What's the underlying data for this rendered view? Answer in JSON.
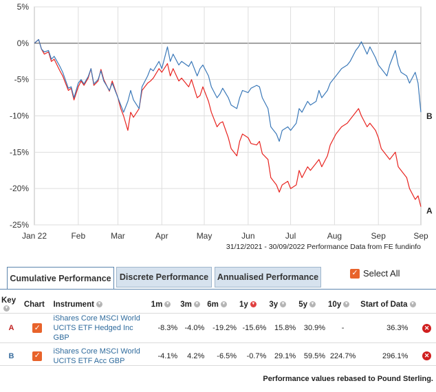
{
  "chart_data": {
    "type": "line",
    "x_ticks": [
      "Jan 22",
      "Feb",
      "Mar",
      "Apr",
      "May",
      "Jun",
      "Jul",
      "Aug",
      "Sep",
      "Sep"
    ],
    "y_ticks": [
      "5%",
      "0%",
      "-5%",
      "-10%",
      "-15%",
      "-20%",
      "-25%"
    ],
    "ylim": [
      -25,
      5
    ],
    "xlim": [
      "2021-12-31",
      "2022-09-30"
    ],
    "grid": true,
    "caption": "31/12/2021 - 30/09/2022 Performance Data from FE fundinfo",
    "series": [
      {
        "name": "A",
        "color": "#e8231f",
        "points": [
          [
            "2021-12-31",
            0
          ],
          [
            "2022-01-03",
            0.5
          ],
          [
            "2022-01-05",
            -0.8
          ],
          [
            "2022-01-07",
            -1.5
          ],
          [
            "2022-01-10",
            -1.2
          ],
          [
            "2022-01-12",
            -2.5
          ],
          [
            "2022-01-14",
            -2.2
          ],
          [
            "2022-01-18",
            -3.8
          ],
          [
            "2022-01-20",
            -4.5
          ],
          [
            "2022-01-24",
            -6.5
          ],
          [
            "2022-01-26",
            -6.2
          ],
          [
            "2022-01-28",
            -7.8
          ],
          [
            "2022-01-31",
            -6.0
          ],
          [
            "2022-02-02",
            -5.2
          ],
          [
            "2022-02-04",
            -5.8
          ],
          [
            "2022-02-07",
            -4.8
          ],
          [
            "2022-02-09",
            -3.5
          ],
          [
            "2022-02-11",
            -5.8
          ],
          [
            "2022-02-14",
            -5.2
          ],
          [
            "2022-02-16",
            -3.6
          ],
          [
            "2022-02-18",
            -5.0
          ],
          [
            "2022-02-22",
            -6.6
          ],
          [
            "2022-02-24",
            -5.2
          ],
          [
            "2022-02-28",
            -7.5
          ],
          [
            "2022-03-02",
            -9.0
          ],
          [
            "2022-03-04",
            -10.0
          ],
          [
            "2022-03-07",
            -12.0
          ],
          [
            "2022-03-09",
            -9.5
          ],
          [
            "2022-03-11",
            -10.2
          ],
          [
            "2022-03-15",
            -9.0
          ],
          [
            "2022-03-17",
            -6.5
          ],
          [
            "2022-03-21",
            -5.5
          ],
          [
            "2022-03-23",
            -5.2
          ],
          [
            "2022-03-25",
            -4.8
          ],
          [
            "2022-03-29",
            -3.5
          ],
          [
            "2022-03-31",
            -4.0
          ],
          [
            "2022-04-04",
            -2.8
          ],
          [
            "2022-04-06",
            -4.5
          ],
          [
            "2022-04-08",
            -3.5
          ],
          [
            "2022-04-12",
            -5.2
          ],
          [
            "2022-04-14",
            -4.8
          ],
          [
            "2022-04-19",
            -6.0
          ],
          [
            "2022-04-21",
            -5.0
          ],
          [
            "2022-04-25",
            -7.5
          ],
          [
            "2022-04-27",
            -7.2
          ],
          [
            "2022-04-29",
            -6.0
          ],
          [
            "2022-05-03",
            -8.0
          ],
          [
            "2022-05-05",
            -9.5
          ],
          [
            "2022-05-09",
            -11.5
          ],
          [
            "2022-05-11",
            -11.0
          ],
          [
            "2022-05-13",
            -10.8
          ],
          [
            "2022-05-17",
            -13.0
          ],
          [
            "2022-05-19",
            -14.5
          ],
          [
            "2022-05-23",
            -15.5
          ],
          [
            "2022-05-25",
            -13.5
          ],
          [
            "2022-05-27",
            -12.5
          ],
          [
            "2022-05-31",
            -13.0
          ],
          [
            "2022-06-02",
            -13.8
          ],
          [
            "2022-06-06",
            -14.0
          ],
          [
            "2022-06-08",
            -13.5
          ],
          [
            "2022-06-10",
            -15.2
          ],
          [
            "2022-06-14",
            -16.0
          ],
          [
            "2022-06-16",
            -18.5
          ],
          [
            "2022-06-20",
            -19.5
          ],
          [
            "2022-06-22",
            -20.5
          ],
          [
            "2022-06-24",
            -19.5
          ],
          [
            "2022-06-28",
            -19.0
          ],
          [
            "2022-06-30",
            -20.0
          ],
          [
            "2022-07-04",
            -19.5
          ],
          [
            "2022-07-06",
            -17.5
          ],
          [
            "2022-07-08",
            -18.5
          ],
          [
            "2022-07-12",
            -17.0
          ],
          [
            "2022-07-14",
            -17.5
          ],
          [
            "2022-07-18",
            -16.5
          ],
          [
            "2022-07-20",
            -16.0
          ],
          [
            "2022-07-22",
            -17.0
          ],
          [
            "2022-07-26",
            -15.5
          ],
          [
            "2022-07-28",
            -14.0
          ],
          [
            "2022-08-01",
            -12.5
          ],
          [
            "2022-08-03",
            -12.0
          ],
          [
            "2022-08-05",
            -11.5
          ],
          [
            "2022-08-09",
            -11.0
          ],
          [
            "2022-08-11",
            -10.5
          ],
          [
            "2022-08-15",
            -9.5
          ],
          [
            "2022-08-17",
            -9.0
          ],
          [
            "2022-08-19",
            -10.0
          ],
          [
            "2022-08-23",
            -11.5
          ],
          [
            "2022-08-25",
            -11.0
          ],
          [
            "2022-08-29",
            -12.0
          ],
          [
            "2022-08-31",
            -13.0
          ],
          [
            "2022-09-02",
            -14.5
          ],
          [
            "2022-09-06",
            -15.5
          ],
          [
            "2022-09-08",
            -16.0
          ],
          [
            "2022-09-12",
            -15.0
          ],
          [
            "2022-09-14",
            -17.0
          ],
          [
            "2022-09-16",
            -17.5
          ],
          [
            "2022-09-20",
            -18.5
          ],
          [
            "2022-09-22",
            -20.0
          ],
          [
            "2022-09-26",
            -21.5
          ],
          [
            "2022-09-28",
            -21.0
          ],
          [
            "2022-09-30",
            -22.5
          ]
        ]
      },
      {
        "name": "B",
        "color": "#3a78b8",
        "points": [
          [
            "2021-12-31",
            0
          ],
          [
            "2022-01-03",
            0.5
          ],
          [
            "2022-01-05",
            -0.8
          ],
          [
            "2022-01-07",
            -1.2
          ],
          [
            "2022-01-10",
            -1.0
          ],
          [
            "2022-01-12",
            -2.2
          ],
          [
            "2022-01-14",
            -1.8
          ],
          [
            "2022-01-18",
            -3.2
          ],
          [
            "2022-01-20",
            -4.0
          ],
          [
            "2022-01-24",
            -6.2
          ],
          [
            "2022-01-26",
            -6.0
          ],
          [
            "2022-01-28",
            -7.5
          ],
          [
            "2022-01-31",
            -5.5
          ],
          [
            "2022-02-02",
            -5.0
          ],
          [
            "2022-02-04",
            -5.6
          ],
          [
            "2022-02-07",
            -4.6
          ],
          [
            "2022-02-09",
            -3.5
          ],
          [
            "2022-02-11",
            -5.6
          ],
          [
            "2022-02-14",
            -5.0
          ],
          [
            "2022-02-16",
            -3.8
          ],
          [
            "2022-02-18",
            -5.2
          ],
          [
            "2022-02-22",
            -6.5
          ],
          [
            "2022-02-24",
            -5.5
          ],
          [
            "2022-02-28",
            -7.5
          ],
          [
            "2022-03-02",
            -8.5
          ],
          [
            "2022-03-04",
            -9.5
          ],
          [
            "2022-03-07",
            -8.0
          ],
          [
            "2022-03-09",
            -6.5
          ],
          [
            "2022-03-11",
            -7.8
          ],
          [
            "2022-03-15",
            -9.0
          ],
          [
            "2022-03-17",
            -6.0
          ],
          [
            "2022-03-21",
            -4.5
          ],
          [
            "2022-03-23",
            -3.5
          ],
          [
            "2022-03-25",
            -3.8
          ],
          [
            "2022-03-29",
            -2.5
          ],
          [
            "2022-03-31",
            -3.5
          ],
          [
            "2022-04-04",
            -0.5
          ],
          [
            "2022-04-06",
            -2.5
          ],
          [
            "2022-04-08",
            -1.5
          ],
          [
            "2022-04-12",
            -3.0
          ],
          [
            "2022-04-14",
            -2.5
          ],
          [
            "2022-04-19",
            -3.2
          ],
          [
            "2022-04-21",
            -2.5
          ],
          [
            "2022-04-25",
            -4.5
          ],
          [
            "2022-04-27",
            -3.5
          ],
          [
            "2022-04-29",
            -3.0
          ],
          [
            "2022-05-03",
            -4.5
          ],
          [
            "2022-05-05",
            -6.0
          ],
          [
            "2022-05-09",
            -7.5
          ],
          [
            "2022-05-11",
            -7.0
          ],
          [
            "2022-05-13",
            -6.2
          ],
          [
            "2022-05-17",
            -7.5
          ],
          [
            "2022-05-19",
            -8.5
          ],
          [
            "2022-05-23",
            -9.0
          ],
          [
            "2022-05-25",
            -7.5
          ],
          [
            "2022-05-27",
            -6.5
          ],
          [
            "2022-05-31",
            -6.8
          ],
          [
            "2022-06-02",
            -6.2
          ],
          [
            "2022-06-06",
            -5.8
          ],
          [
            "2022-06-08",
            -6.0
          ],
          [
            "2022-06-10",
            -7.5
          ],
          [
            "2022-06-14",
            -9.0
          ],
          [
            "2022-06-16",
            -11.5
          ],
          [
            "2022-06-20",
            -12.5
          ],
          [
            "2022-06-22",
            -13.5
          ],
          [
            "2022-06-24",
            -12.0
          ],
          [
            "2022-06-28",
            -11.5
          ],
          [
            "2022-06-30",
            -12.0
          ],
          [
            "2022-07-04",
            -11.0
          ],
          [
            "2022-07-06",
            -9.0
          ],
          [
            "2022-07-08",
            -9.5
          ],
          [
            "2022-07-12",
            -8.0
          ],
          [
            "2022-07-14",
            -8.5
          ],
          [
            "2022-07-18",
            -8.0
          ],
          [
            "2022-07-20",
            -6.5
          ],
          [
            "2022-07-22",
            -7.5
          ],
          [
            "2022-07-26",
            -6.5
          ],
          [
            "2022-07-28",
            -5.5
          ],
          [
            "2022-08-01",
            -4.5
          ],
          [
            "2022-08-03",
            -4.0
          ],
          [
            "2022-08-05",
            -3.5
          ],
          [
            "2022-08-09",
            -3.0
          ],
          [
            "2022-08-11",
            -2.5
          ],
          [
            "2022-08-15",
            -1.0
          ],
          [
            "2022-08-17",
            -0.5
          ],
          [
            "2022-08-19",
            0.2
          ],
          [
            "2022-08-23",
            -1.5
          ],
          [
            "2022-08-25",
            -0.5
          ],
          [
            "2022-08-29",
            -2.0
          ],
          [
            "2022-08-31",
            -3.0
          ],
          [
            "2022-09-02",
            -3.5
          ],
          [
            "2022-09-06",
            -4.5
          ],
          [
            "2022-09-08",
            -3.0
          ],
          [
            "2022-09-12",
            -1.0
          ],
          [
            "2022-09-14",
            -3.0
          ],
          [
            "2022-09-16",
            -4.0
          ],
          [
            "2022-09-20",
            -4.5
          ],
          [
            "2022-09-22",
            -5.5
          ],
          [
            "2022-09-26",
            -4.0
          ],
          [
            "2022-09-28",
            -5.5
          ],
          [
            "2022-09-30",
            -9.5
          ]
        ]
      }
    ]
  },
  "tabs": [
    {
      "label": "Cumulative Performance",
      "active": true
    },
    {
      "label": "Discrete Performance",
      "active": false
    },
    {
      "label": "Annualised Performance",
      "active": false
    }
  ],
  "select_all": {
    "label": "Select All",
    "checked": true
  },
  "table": {
    "headers": {
      "key": "Key",
      "chart": "Chart",
      "instrument": "Instrument",
      "m1": "1m",
      "m3": "3m",
      "m6": "6m",
      "y1": "1y",
      "y3": "3y",
      "y5": "5y",
      "y10": "10y",
      "start": "Start of Data"
    },
    "rows": [
      {
        "key": "A",
        "instrument": "iShares Core MSCI World UCITS ETF Hedged Inc GBP",
        "m1": "-8.3%",
        "m3": "-4.0%",
        "m6": "-19.2%",
        "y1": "-15.6%",
        "y3": "15.8%",
        "y5": "30.9%",
        "y10": "-",
        "start": "36.3%"
      },
      {
        "key": "B",
        "instrument": "iShares Core MSCI World UCITS ETF Acc GBP",
        "m1": "-4.1%",
        "m3": "4.2%",
        "m6": "-6.5%",
        "y1": "-0.7%",
        "y3": "29.1%",
        "y5": "59.5%",
        "y10": "224.7%",
        "start": "296.1%"
      }
    ]
  },
  "footnote": "Performance values rebased to Pound Sterling."
}
